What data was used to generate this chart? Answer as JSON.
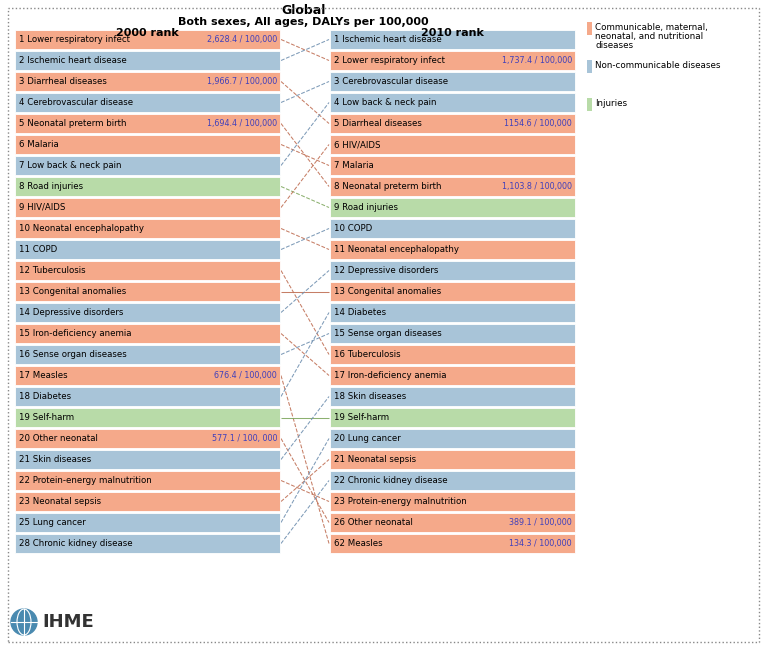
{
  "title_line1": "Global",
  "title_line2": "Both sexes, All ages, DALYs per 100,000",
  "col_left_header": "2000 rank",
  "col_right_header": "2010 rank",
  "left_items": [
    {
      "rank": 1,
      "label": "Lower respiratory infect",
      "daly": "2,628.4 / 100,000",
      "color": "comm"
    },
    {
      "rank": 2,
      "label": "Ischemic heart disease",
      "daly": null,
      "color": "noncomm"
    },
    {
      "rank": 3,
      "label": "Diarrheal diseases",
      "daly": "1,966.7 / 100,000",
      "color": "comm"
    },
    {
      "rank": 4,
      "label": "Cerebrovascular disease",
      "daly": null,
      "color": "noncomm"
    },
    {
      "rank": 5,
      "label": "Neonatal preterm birth",
      "daly": "1,694.4 / 100,000",
      "color": "comm"
    },
    {
      "rank": 6,
      "label": "Malaria",
      "daly": null,
      "color": "comm"
    },
    {
      "rank": 7,
      "label": "Low back & neck pain",
      "daly": null,
      "color": "noncomm"
    },
    {
      "rank": 8,
      "label": "Road injuries",
      "daly": null,
      "color": "injury"
    },
    {
      "rank": 9,
      "label": "HIV/AIDS",
      "daly": null,
      "color": "comm"
    },
    {
      "rank": 10,
      "label": "Neonatal encephalopathy",
      "daly": null,
      "color": "comm"
    },
    {
      "rank": 11,
      "label": "COPD",
      "daly": null,
      "color": "noncomm"
    },
    {
      "rank": 12,
      "label": "Tuberculosis",
      "daly": null,
      "color": "comm"
    },
    {
      "rank": 13,
      "label": "Congenital anomalies",
      "daly": null,
      "color": "comm"
    },
    {
      "rank": 14,
      "label": "Depressive disorders",
      "daly": null,
      "color": "noncomm"
    },
    {
      "rank": 15,
      "label": "Iron-deficiency anemia",
      "daly": null,
      "color": "comm"
    },
    {
      "rank": 16,
      "label": "Sense organ diseases",
      "daly": null,
      "color": "noncomm"
    },
    {
      "rank": 17,
      "label": "Measles",
      "daly": "676.4 / 100,000",
      "color": "comm"
    },
    {
      "rank": 18,
      "label": "Diabetes",
      "daly": null,
      "color": "noncomm"
    },
    {
      "rank": 19,
      "label": "Self-harm",
      "daly": null,
      "color": "injury"
    },
    {
      "rank": 20,
      "label": "Other neonatal",
      "daly": "577.1 / 100, 000",
      "color": "comm"
    },
    {
      "rank": 21,
      "label": "Skin diseases",
      "daly": null,
      "color": "noncomm"
    },
    {
      "rank": 22,
      "label": "Protein-energy malnutrition",
      "daly": null,
      "color": "comm"
    },
    {
      "rank": 23,
      "label": "Neonatal sepsis",
      "daly": null,
      "color": "comm"
    },
    {
      "rank": 25,
      "label": "Lung cancer",
      "daly": null,
      "color": "noncomm"
    },
    {
      "rank": 28,
      "label": "Chronic kidney disease",
      "daly": null,
      "color": "noncomm"
    }
  ],
  "right_items": [
    {
      "rank": 1,
      "label": "Ischemic heart disease",
      "daly": null,
      "color": "noncomm"
    },
    {
      "rank": 2,
      "label": "Lower respiratory infect",
      "daly": "1,737.4 / 100,000",
      "color": "comm"
    },
    {
      "rank": 3,
      "label": "Cerebrovascular disease",
      "daly": null,
      "color": "noncomm"
    },
    {
      "rank": 4,
      "label": "Low back & neck pain",
      "daly": null,
      "color": "noncomm"
    },
    {
      "rank": 5,
      "label": "Diarrheal diseases",
      "daly": "1154.6 / 100,000",
      "color": "comm"
    },
    {
      "rank": 6,
      "label": "HIV/AIDS",
      "daly": null,
      "color": "comm"
    },
    {
      "rank": 7,
      "label": "Malaria",
      "daly": null,
      "color": "comm"
    },
    {
      "rank": 8,
      "label": "Neonatal preterm birth",
      "daly": "1,103.8 / 100,000",
      "color": "comm"
    },
    {
      "rank": 9,
      "label": "Road injuries",
      "daly": null,
      "color": "injury"
    },
    {
      "rank": 10,
      "label": "COPD",
      "daly": null,
      "color": "noncomm"
    },
    {
      "rank": 11,
      "label": "Neonatal encephalopathy",
      "daly": null,
      "color": "comm"
    },
    {
      "rank": 12,
      "label": "Depressive disorders",
      "daly": null,
      "color": "noncomm"
    },
    {
      "rank": 13,
      "label": "Congenital anomalies",
      "daly": null,
      "color": "comm"
    },
    {
      "rank": 14,
      "label": "Diabetes",
      "daly": null,
      "color": "noncomm"
    },
    {
      "rank": 15,
      "label": "Sense organ diseases",
      "daly": null,
      "color": "noncomm"
    },
    {
      "rank": 16,
      "label": "Tuberculosis",
      "daly": null,
      "color": "comm"
    },
    {
      "rank": 17,
      "label": "Iron-deficiency anemia",
      "daly": null,
      "color": "comm"
    },
    {
      "rank": 18,
      "label": "Skin diseases",
      "daly": null,
      "color": "noncomm"
    },
    {
      "rank": 19,
      "label": "Self-harm",
      "daly": null,
      "color": "injury"
    },
    {
      "rank": 20,
      "label": "Lung cancer",
      "daly": null,
      "color": "noncomm"
    },
    {
      "rank": 21,
      "label": "Neonatal sepsis",
      "daly": null,
      "color": "comm"
    },
    {
      "rank": 22,
      "label": "Chronic kidney disease",
      "daly": null,
      "color": "noncomm"
    },
    {
      "rank": 23,
      "label": "Protein-energy malnutrition",
      "daly": null,
      "color": "comm"
    },
    {
      "rank": 26,
      "label": "Other neonatal",
      "daly": "389.1 / 100,000",
      "color": "comm"
    },
    {
      "rank": 62,
      "label": "Measles",
      "daly": "134.3 / 100,000",
      "color": "comm"
    }
  ],
  "connections": [
    [
      "Lower respiratory infect",
      "Lower respiratory infect"
    ],
    [
      "Ischemic heart disease",
      "Ischemic heart disease"
    ],
    [
      "Diarrheal diseases",
      "Diarrheal diseases"
    ],
    [
      "Cerebrovascular disease",
      "Cerebrovascular disease"
    ],
    [
      "Neonatal preterm birth",
      "Neonatal preterm birth"
    ],
    [
      "Malaria",
      "Malaria"
    ],
    [
      "Low back & neck pain",
      "Low back & neck pain"
    ],
    [
      "Road injuries",
      "Road injuries"
    ],
    [
      "HIV/AIDS",
      "HIV/AIDS"
    ],
    [
      "Neonatal encephalopathy",
      "Neonatal encephalopathy"
    ],
    [
      "COPD",
      "COPD"
    ],
    [
      "Tuberculosis",
      "Tuberculosis"
    ],
    [
      "Congenital anomalies",
      "Congenital anomalies"
    ],
    [
      "Depressive disorders",
      "Depressive disorders"
    ],
    [
      "Iron-deficiency anemia",
      "Iron-deficiency anemia"
    ],
    [
      "Sense organ diseases",
      "Sense organ diseases"
    ],
    [
      "Measles",
      "Measles"
    ],
    [
      "Diabetes",
      "Diabetes"
    ],
    [
      "Self-harm",
      "Self-harm"
    ],
    [
      "Other neonatal",
      "Other neonatal"
    ],
    [
      "Skin diseases",
      "Skin diseases"
    ],
    [
      "Protein-energy malnutrition",
      "Protein-energy malnutrition"
    ],
    [
      "Neonatal sepsis",
      "Neonatal sepsis"
    ],
    [
      "Lung cancer",
      "Lung cancer"
    ],
    [
      "Chronic kidney disease",
      "Chronic kidney disease"
    ]
  ],
  "colors": {
    "comm": "#F5A98A",
    "noncomm": "#A8C4D8",
    "injury": "#B8DBA8",
    "comm_line": "#C07055",
    "noncomm_line": "#7090B0",
    "injury_line": "#80A860",
    "daly_text": "#4040BB",
    "bg": "#F5F5F0"
  },
  "legend": [
    {
      "label": "Communicable, maternal,\nneonatal, and nutritional\ndiseases",
      "color": "comm"
    },
    {
      "label": "Non-communicable diseases",
      "color": "noncomm"
    },
    {
      "label": "Injuries",
      "color": "injury"
    }
  ]
}
